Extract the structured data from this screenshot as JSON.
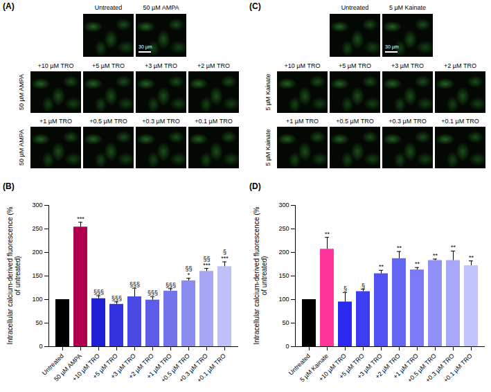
{
  "image_panels": [
    {
      "letter": "(A)",
      "top_labels": [
        "Untreated",
        "50 µM AMPA"
      ],
      "scale_bar": "30 µm",
      "side_label": "50 µM AMPA",
      "rows": [
        [
          "+10 µM TRO",
          "+5 µM TRO",
          "+3 µM TRO",
          "+2 µM TRO"
        ],
        [
          "+1 µM TRO",
          "+0.5 µM TRO",
          "+0.3 µM TRO",
          "+0.1 µM TRO"
        ]
      ]
    },
    {
      "letter": "(C)",
      "top_labels": [
        "Untreated",
        "5 µM Kainate"
      ],
      "scale_bar": "30 µm",
      "side_label": "5 µM Kainate",
      "rows": [
        [
          "+10 µM TRO",
          "+5 µM TRO",
          "+3 µM TRO",
          "+2 µM TRO"
        ],
        [
          "+1 µM TRO",
          "+0.5 µM TRO",
          "+0.3 µM TRO",
          "+0.1 µM TRO"
        ]
      ]
    }
  ],
  "chart_data": [
    {
      "letter": "(B)",
      "type": "bar",
      "y_label": "Intracellular calcium-derived fluorescence (% of untreated)",
      "categories": [
        "Untreated",
        "50 µM AMPA",
        "+10 µM TRO",
        "+5 µM TRO",
        "+3 µM TRO",
        "+2 µM TRO",
        "+1 µM TRO",
        "+0.5 µM TRO",
        "+0.3 µM TRO",
        "+0.1 µM TRO"
      ],
      "values": [
        100,
        254,
        102,
        90,
        106,
        99,
        118,
        140,
        160,
        170
      ],
      "errors": [
        0,
        10,
        6,
        5,
        18,
        7,
        5,
        5,
        6,
        10
      ],
      "colors": [
        "#000000",
        "#b0004e",
        "#1f1fd6",
        "#3333e0",
        "#4a4ae6",
        "#5c5ce8",
        "#7373ec",
        "#8c8cf0",
        "#a6a6f4",
        "#c0c0f8"
      ],
      "significance_vs_untreated": [
        null,
        "***",
        null,
        null,
        null,
        null,
        null,
        "*",
        "***",
        "***"
      ],
      "significance_vs_agonist": [
        null,
        null,
        "§§§",
        "§§§",
        "§§§",
        "§§§",
        "§§§",
        "§§",
        "§§",
        "§"
      ],
      "ylim": [
        0,
        300
      ],
      "yticks": [
        0,
        50,
        100,
        150,
        200,
        250,
        300
      ],
      "grid": false
    },
    {
      "letter": "(D)",
      "type": "bar",
      "y_label": "Intracellular calcium-derived fluorescence (% of untreated)",
      "categories": [
        "Untreated",
        "5 µM Kainate",
        "+10 µM TRO",
        "+5 µM TRO",
        "+3 µM TRO",
        "+2 µM TRO",
        "+1 µM TRO",
        "+0.5 µM TRO",
        "+0.3 µM TRO",
        "+0.1 µM TRO"
      ],
      "values": [
        100,
        207,
        95,
        117,
        155,
        187,
        163,
        183,
        183,
        172
      ],
      "errors": [
        0,
        25,
        20,
        5,
        7,
        15,
        5,
        3,
        20,
        10
      ],
      "colors": [
        "#000000",
        "#ff3399",
        "#2a2af0",
        "#3d3df2",
        "#5252f4",
        "#6666f5",
        "#7a7af6",
        "#9090f8",
        "#a8a8fa",
        "#c4c4fc"
      ],
      "significance_vs_untreated": [
        null,
        "**",
        null,
        null,
        "**",
        "**",
        "**",
        "**",
        "**",
        "**"
      ],
      "significance_vs_agonist": [
        null,
        null,
        "§",
        "§",
        null,
        null,
        null,
        null,
        null,
        null
      ],
      "ylim": [
        0,
        300
      ],
      "yticks": [
        0,
        50,
        100,
        150,
        200,
        250,
        300
      ],
      "grid": false
    }
  ]
}
